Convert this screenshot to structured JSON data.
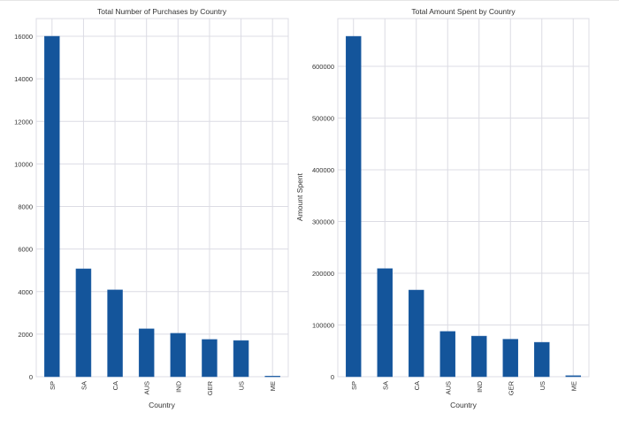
{
  "colors": {
    "bar": "#14559b",
    "grid": "#dcdce4",
    "background": "#ffffff"
  },
  "chart_data": [
    {
      "type": "bar",
      "title": "Total Number of Purchases by Country",
      "xlabel": "Country",
      "ylabel": "",
      "categories": [
        "SP",
        "SA",
        "CA",
        "AUS",
        "IND",
        "GER",
        "US",
        "ME"
      ],
      "values": [
        16000,
        5070,
        4080,
        2250,
        2040,
        1750,
        1700,
        30
      ],
      "ylim": [
        0,
        17000
      ],
      "yticks": [
        0,
        2000,
        4000,
        6000,
        8000,
        10000,
        12000,
        14000,
        16000
      ],
      "grid": true
    },
    {
      "type": "bar",
      "title": "Total Amount Spent by Country",
      "xlabel": "Country",
      "ylabel": "Amount Spent",
      "categories": [
        "SP",
        "SA",
        "CA",
        "AUS",
        "IND",
        "GER",
        "US",
        "ME"
      ],
      "values": [
        658000,
        209000,
        167500,
        87500,
        78500,
        72500,
        66500,
        2000
      ],
      "ylim": [
        0,
        692000
      ],
      "yticks": [
        0,
        100000,
        200000,
        300000,
        400000,
        500000,
        600000
      ],
      "grid": true
    }
  ]
}
